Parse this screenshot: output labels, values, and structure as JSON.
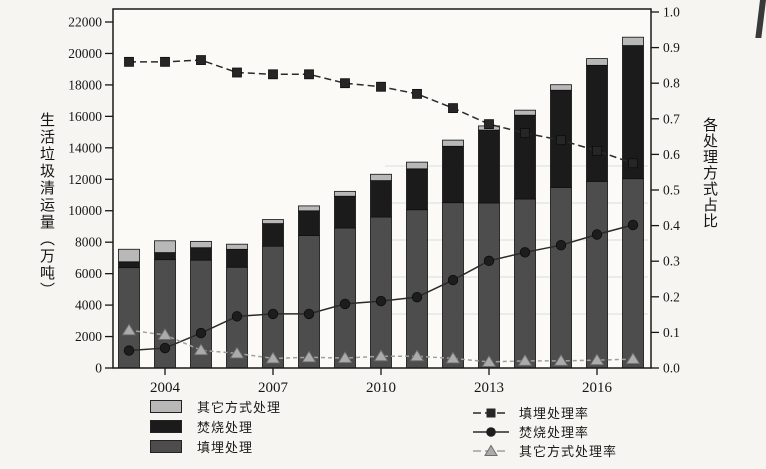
{
  "chart_data": {
    "type": "combo: stacked-bar (left axis) + line (right axis)",
    "categories": [
      2003,
      2004,
      2005,
      2006,
      2007,
      2008,
      2009,
      2010,
      2011,
      2012,
      2013,
      2014,
      2015,
      2016,
      2017
    ],
    "bar_series": [
      {
        "key": "landfill",
        "name": "填埋处理",
        "color": "#4d4d4d",
        "values": [
          6382,
          6889,
          6857,
          6408,
          7746,
          8424,
          8899,
          9598,
          10064,
          10513,
          10493,
          10744,
          11483,
          11866,
          12038
        ]
      },
      {
        "key": "incineration",
        "name": "焚烧处理",
        "color": "#1b1b1b",
        "values": [
          370,
          449,
          791,
          1138,
          1435,
          1570,
          2022,
          2317,
          2599,
          3584,
          4634,
          5330,
          6176,
          7378,
          8463
        ]
      },
      {
        "key": "other",
        "name": "其它方式处理",
        "color": "#b8b8b8",
        "values": [
          798,
          751,
          404,
          326,
          257,
          313,
          311,
          403,
          427,
          393,
          267,
          320,
          354,
          430,
          533
        ]
      }
    ],
    "line_series": [
      {
        "key": "landfill-rate",
        "name": "填埋处理率",
        "marker": "square",
        "color": "#2a2a2a",
        "marker_fill": "#262626",
        "line_dash": "7 4",
        "values": [
          0.86,
          0.86,
          0.865,
          0.83,
          0.825,
          0.825,
          0.8,
          0.79,
          0.77,
          0.73,
          0.685,
          0.66,
          0.64,
          0.61,
          0.575
        ]
      },
      {
        "key": "incineration-rate",
        "name": "焚烧处理率",
        "marker": "circle",
        "color": "#2a2a2a",
        "marker_fill": "#1d1d1d",
        "line_dash": "",
        "values": [
          0.049,
          0.056,
          0.098,
          0.145,
          0.152,
          0.152,
          0.18,
          0.188,
          0.199,
          0.247,
          0.301,
          0.325,
          0.345,
          0.375,
          0.402
        ]
      },
      {
        "key": "other-rate",
        "name": "其它方式处理率",
        "marker": "triangle",
        "color": "#a0a0a0",
        "marker_fill": "#ababab",
        "line_dash": "4 3",
        "values": [
          0.106,
          0.093,
          0.05,
          0.041,
          0.027,
          0.03,
          0.028,
          0.033,
          0.033,
          0.027,
          0.017,
          0.02,
          0.02,
          0.022,
          0.025
        ]
      }
    ],
    "left_axis": {
      "title": "生活垃圾清运量（万吨）",
      "min": 0,
      "max": 22000,
      "step": 2000,
      "tick_labels": [
        "0",
        "2000",
        "4000",
        "6000",
        "8000",
        "10000",
        "12000",
        "14000",
        "16000",
        "18000",
        "20000",
        "22000"
      ]
    },
    "right_axis": {
      "title": "各处理方式占比",
      "min": 0.0,
      "max": 1.0,
      "step": 0.1,
      "tick_labels": [
        "0.0",
        "0.1",
        "0.2",
        "0.3",
        "0.4",
        "0.5",
        "0.6",
        "0.7",
        "0.8",
        "0.9",
        "1.0"
      ]
    },
    "x_axis": {
      "tick_labels": [
        "2004",
        "2007",
        "2010",
        "2013",
        "2016"
      ],
      "tick_years": [
        2004,
        2007,
        2010,
        2013,
        2016
      ]
    },
    "grid": "off",
    "legend_position": "below chart: bar legend left, line legend right"
  },
  "legends": {
    "bar_legend_order": [
      "其它方式处理",
      "焚烧处理",
      "填埋处理"
    ],
    "line_legend_order": [
      "填埋处理率",
      "焚烧处理率",
      "其它方式处理率"
    ]
  },
  "style": {
    "frame_color": "#1a1a1a",
    "plot_background": "#fbfaf7",
    "page_background": "#f6f5f1"
  }
}
